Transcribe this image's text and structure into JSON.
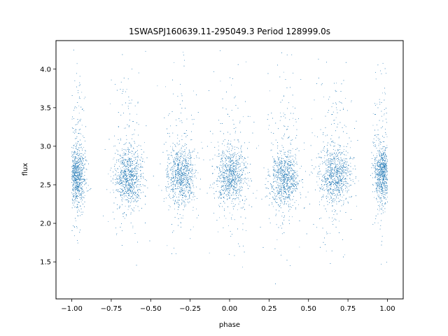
{
  "chart_data": {
    "type": "scatter",
    "title": "1SWASPJ160639.11-295049.3 Period 128999.0s",
    "xlabel": "phase",
    "ylabel": "flux",
    "xlim": [
      -1.1,
      1.1
    ],
    "ylim": [
      1.02,
      4.37
    ],
    "xticks": [
      -1.0,
      -0.75,
      -0.5,
      -0.25,
      0.0,
      0.25,
      0.5,
      0.75,
      1.0
    ],
    "xtick_labels": [
      "−1.00",
      "−0.75",
      "−0.50",
      "−0.25",
      "0.00",
      "0.25",
      "0.50",
      "0.75",
      "1.00"
    ],
    "yticks": [
      1.5,
      2.0,
      2.5,
      3.0,
      3.5,
      4.0
    ],
    "ytick_labels": [
      "1.5",
      "2.0",
      "2.5",
      "3.0",
      "3.5",
      "4.0"
    ],
    "grid": false,
    "marker_color": "#1f77b4",
    "point_count_approx": 14000,
    "series": [
      {
        "clusters": [
          {
            "x_center": -0.97,
            "x_width": 0.05,
            "y_center": 2.62,
            "y_spread": 0.17
          },
          {
            "x_center": -0.64,
            "x_width": 0.08,
            "y_center": 2.6,
            "y_spread": 0.17
          },
          {
            "x_center": -0.31,
            "x_width": 0.08,
            "y_center": 2.62,
            "y_spread": 0.17
          },
          {
            "x_center": 0.01,
            "x_width": 0.09,
            "y_center": 2.62,
            "y_spread": 0.17
          },
          {
            "x_center": 0.35,
            "x_width": 0.08,
            "y_center": 2.57,
            "y_spread": 0.17
          },
          {
            "x_center": 0.67,
            "x_width": 0.09,
            "y_center": 2.62,
            "y_spread": 0.17
          },
          {
            "x_center": 0.97,
            "x_width": 0.05,
            "y_center": 2.65,
            "y_spread": 0.17
          }
        ],
        "x_range": [
          -1.0,
          1.0
        ],
        "y_range": [
          1.15,
          4.25
        ]
      }
    ]
  }
}
